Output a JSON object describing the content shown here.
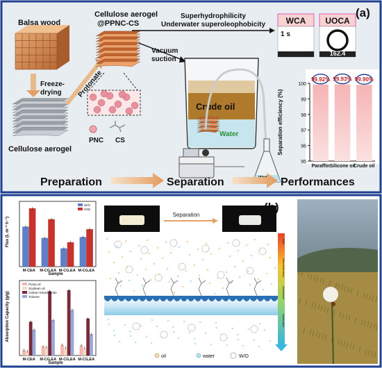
{
  "panel_a": {
    "label": "(a)",
    "balsa_label": "Balsa wood",
    "freeze_label_1": "Freeze-",
    "freeze_label_2": "drying",
    "aerogel_label": "Cellulose aerogel",
    "protonate_label": "Protonate",
    "product_label_1": "Cellulose aerogel",
    "product_label_2": "@PPNC-CS",
    "legend_pnc": "PNC",
    "legend_cs": "CS",
    "property_1": "Superhydrophilicity",
    "property_2": "Underwater superoleophobicity",
    "vacuum_1": "Vacuum",
    "vacuum_2": "suction",
    "crude_oil": "Crude oil",
    "water": "Water",
    "flask_label": "Water",
    "wca_title": "WCA",
    "wca_value": "1 s",
    "uoca_title": "UOCA",
    "uoca_value": "162.4",
    "steps": [
      "Preparation",
      "Separation",
      "Performances"
    ],
    "colors": {
      "border": "#1f3f8f",
      "arrow": "#e8b98a",
      "bar": "#f3a9aa",
      "crude_oil": "#b07a2c",
      "water": "#bfe3ef",
      "aerogel": "#e07a3a"
    }
  },
  "panel_b": {
    "label": "(b)",
    "separation_label": "Separation",
    "legend_oil": "oil",
    "legend_water": "water",
    "legend_wo": "W/O",
    "side_labels": [
      "W/O",
      "Demulsification",
      "Adsorption",
      "Separation"
    ],
    "flux_chart": {
      "ylabel": "Flux (L m⁻² h⁻¹)",
      "xlabel": "Sample",
      "legend": [
        "W/O",
        "O/W"
      ]
    },
    "absorption_chart": {
      "ylabel": "Absorption Capacity (g/g)",
      "xlabel": "Sample",
      "legend": [
        "Pump oil",
        "Soybean oil",
        "Carbon tetrachloride",
        "Toluene"
      ]
    }
  },
  "chart_data": [
    {
      "type": "bar",
      "title": "",
      "ylabel": "Separation efficiency (%)",
      "xlabel": "",
      "categories": [
        "Paraffin",
        "Silicone oil",
        "Crude oil"
      ],
      "values": [
        99.92,
        99.93,
        99.9
      ],
      "data_labels": [
        "99.92%",
        "99.93%",
        "99.90%"
      ],
      "ylim": [
        95,
        100
      ],
      "yticks": [
        "95",
        "96",
        "97",
        "98",
        "99",
        "100"
      ]
    },
    {
      "type": "bar",
      "title": "",
      "ylabel": "Flux (L m⁻² h⁻¹)",
      "xlabel": "Sample",
      "categories": [
        "M-CEA",
        "M-CG,EA",
        "M-CG,EA",
        "M-CG,EA"
      ],
      "series": [
        {
          "name": "W/O",
          "values": [
            9.2,
            6.6,
            4.2,
            6.8
          ],
          "color": "#5f7fc8"
        },
        {
          "name": "O/W",
          "values": [
            13.4,
            10.9,
            5.6,
            8.6
          ],
          "color": "#c8312c"
        }
      ],
      "ylim": [
        0,
        15
      ]
    },
    {
      "type": "bar",
      "title": "",
      "ylabel": "Absorption Capacity (g/g)",
      "xlabel": "Sample",
      "categories": [
        "M-CEA",
        "M-CG,EA",
        "M-CG,EA",
        "M-CG,EA"
      ],
      "series": [
        {
          "name": "Pump oil",
          "values": [
            1.0,
            1.7,
            2.0,
            1.9
          ],
          "color": "#f2b7b0"
        },
        {
          "name": "Soybean oil",
          "values": [
            0.8,
            1.6,
            1.5,
            1.4
          ],
          "color": "#f0dcc4"
        },
        {
          "name": "Carbon tetrachloride",
          "values": [
            6.3,
            12.0,
            12.2,
            6.9
          ],
          "color": "#7b2a3a"
        },
        {
          "name": "Toluene",
          "values": [
            4.8,
            6.6,
            8.5,
            4.0
          ],
          "color": "#9aa7d9"
        }
      ],
      "ylim": [
        0,
        14
      ]
    }
  ]
}
